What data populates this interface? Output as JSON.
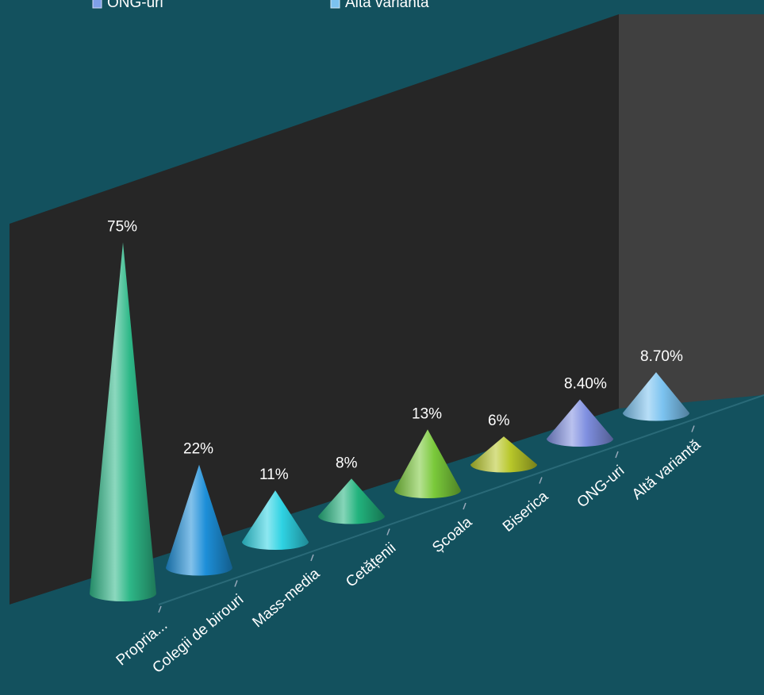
{
  "chart_data": {
    "type": "bar",
    "shape": "3d-cone",
    "title": "",
    "xlabel": "",
    "ylabel": "",
    "categories": [
      "Propria...",
      "Colegii de birouri",
      "Mass-media",
      "Cetățenii",
      "Școala",
      "Biserica",
      "ONG-uri",
      "Altă variantă"
    ],
    "values": [
      75,
      22,
      11,
      8,
      13,
      6,
      8.4,
      8.7
    ],
    "value_labels": [
      "75%",
      "22%",
      "11%",
      "8%",
      "13%",
      "6%",
      "8.40%",
      "8.70%"
    ],
    "colors": [
      "#2eb888",
      "#1d8fd8",
      "#2fd3e3",
      "#22b37d",
      "#7ac93a",
      "#b8c72a",
      "#7f8fe0",
      "#7cc3f0"
    ],
    "ylim": [
      0,
      80
    ],
    "legend": {
      "placement": "top",
      "entries": [
        "ONG-uri",
        "Altă variantă"
      ]
    },
    "background": "#13515e",
    "wall_color": "#262626",
    "side_wall_color": "#404040"
  }
}
